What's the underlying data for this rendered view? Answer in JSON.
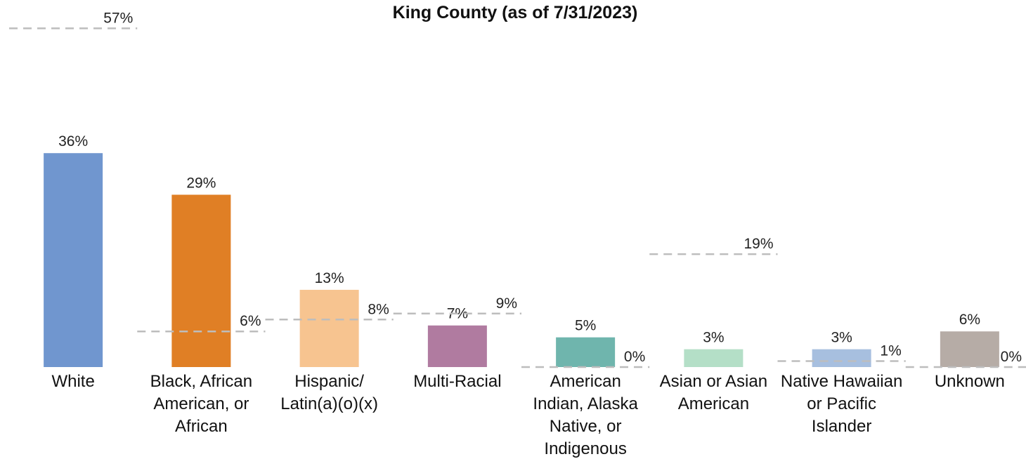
{
  "chart_data": {
    "type": "bar",
    "title": "King County (as of 7/31/2023)",
    "categories": [
      "White",
      "Black, African American, or African",
      "Hispanic/ Latin(a)(o)(x)",
      "Multi-Racial",
      "American Indian, Alaska Native, or Indigenous",
      "Asian or Asian American",
      "Native Hawaiian or Pacific Islander",
      "Unknown"
    ],
    "values": [
      36,
      29,
      13,
      7,
      5,
      3,
      3,
      6
    ],
    "value_labels": [
      "36%",
      "29%",
      "13%",
      "7%",
      "5%",
      "3%",
      "3%",
      "6%"
    ],
    "colors": [
      "#7096cf",
      "#e07f25",
      "#f7c490",
      "#b07ba0",
      "#6fb5ad",
      "#b4dfc7",
      "#a7bfdf",
      "#b6aca6"
    ],
    "reference": {
      "values": [
        57,
        6,
        8,
        9,
        0,
        19,
        1,
        0
      ],
      "value_labels": [
        "57%",
        "6%",
        "8%",
        "9%",
        "0%",
        "19%",
        "1%",
        "0%"
      ],
      "color": "#bdbdbd"
    },
    "ylim": [
      0,
      60
    ]
  }
}
